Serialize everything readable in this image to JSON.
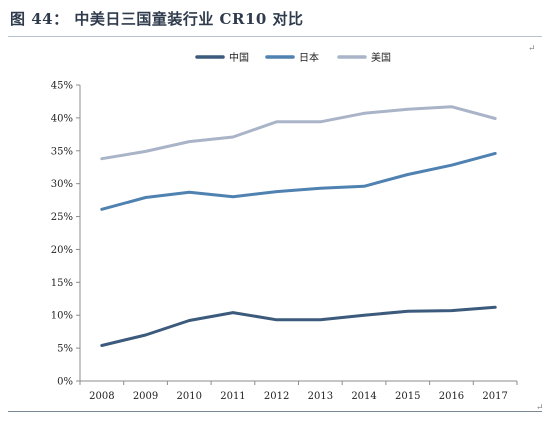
{
  "figure": {
    "title": "图 44： 中美日三国童装行业 CR10 对比",
    "title_mark": "↵",
    "right_mark": "↵"
  },
  "chart_data": {
    "type": "line",
    "title": "图 44： 中美日三国童装行业 CR10 对比",
    "x": [
      "2008",
      "2009",
      "2010",
      "2011",
      "2012",
      "2013",
      "2014",
      "2015",
      "2016",
      "2017"
    ],
    "yticks": [
      "0%",
      "5%",
      "10%",
      "15%",
      "20%",
      "25%",
      "30%",
      "35%",
      "40%",
      "45%"
    ],
    "ylim": [
      0,
      45
    ],
    "legend_position": "top-center",
    "grid": false,
    "series": [
      {
        "name": "中国",
        "color": "#3c5a7c",
        "values": [
          5.4,
          7.0,
          9.2,
          10.4,
          9.3,
          9.3,
          10.0,
          10.6,
          10.7,
          11.2
        ]
      },
      {
        "name": "日本",
        "color": "#4f81b1",
        "values": [
          26.1,
          27.9,
          28.7,
          28.0,
          28.8,
          29.3,
          29.6,
          31.4,
          32.8,
          34.6
        ]
      },
      {
        "name": "美国",
        "color": "#aab4c8",
        "values": [
          33.8,
          34.9,
          36.4,
          37.1,
          39.4,
          39.4,
          40.7,
          41.3,
          41.7,
          39.9
        ]
      }
    ]
  }
}
